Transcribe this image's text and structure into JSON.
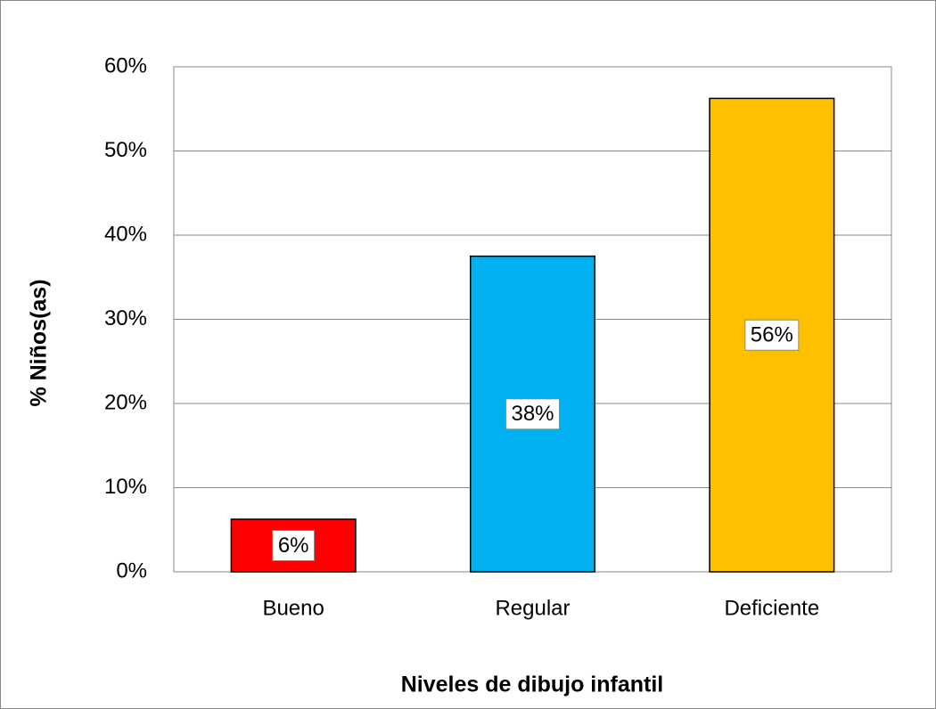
{
  "chart_data": {
    "type": "bar",
    "categories": [
      "Bueno",
      "Regular",
      "Deficiente"
    ],
    "values": [
      6.25,
      37.5,
      56.25
    ],
    "value_labels": [
      "6%",
      "38%",
      "56%"
    ],
    "colors": [
      "#ff0000",
      "#00b0f0",
      "#ffc000"
    ],
    "xlabel": "Niveles de dibujo infantil",
    "ylabel": "% Niños(as)",
    "ylim": [
      0,
      60
    ],
    "yticks": [
      {
        "value": 0,
        "label": "0%"
      },
      {
        "value": 10,
        "label": "10%"
      },
      {
        "value": 20,
        "label": "20%"
      },
      {
        "value": 30,
        "label": "30%"
      },
      {
        "value": 40,
        "label": "40%"
      },
      {
        "value": 50,
        "label": "50%"
      },
      {
        "value": 60,
        "label": "60%"
      }
    ],
    "grid": true
  }
}
